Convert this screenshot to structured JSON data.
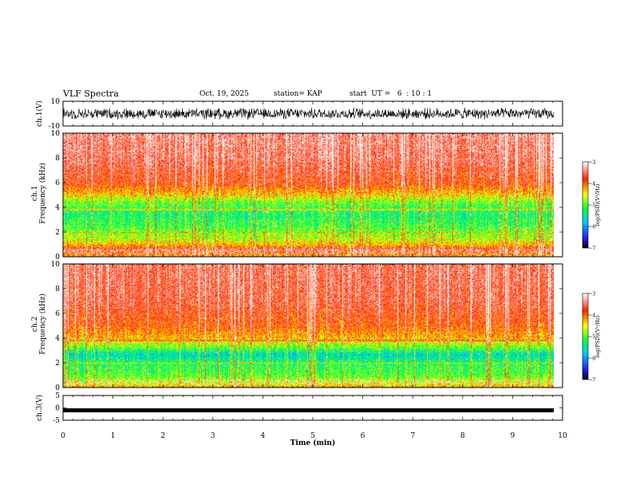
{
  "header": {
    "title": "VLF Spectra",
    "date": "Oct. 19, 2025",
    "station": "station= KAP",
    "start": "start  UT =   6  : 10 : 1"
  },
  "chart_data": {
    "type": "heatmap",
    "title": "VLF Spectra",
    "xlabel": "Time  (min)",
    "xlim": [
      0,
      10
    ],
    "xticks": [
      "0",
      "1",
      "2",
      "3",
      "4",
      "5",
      "6",
      "7",
      "8",
      "9",
      "10"
    ],
    "data_end_min": 9.83,
    "panels": [
      {
        "id": "ch1-waveform",
        "type": "line",
        "ylabel": "ch.1(V)",
        "ylim": [
          -10,
          10
        ],
        "yticks": [
          "10",
          "-10"
        ],
        "typical_range": [
          -5,
          5
        ]
      },
      {
        "id": "ch1-spectrogram",
        "type": "heatmap",
        "ylabel_line1": "ch.1",
        "ylabel_line2": "Frequency  (kHz)",
        "ylim": [
          0,
          10
        ],
        "yticks": [
          "0",
          "2",
          "4",
          "6",
          "8",
          "10"
        ],
        "band_profile": [
          {
            "f": 0.0,
            "v": -4.4
          },
          {
            "f": 0.5,
            "v": -3.6
          },
          {
            "f": 1.0,
            "v": -4.3
          },
          {
            "f": 1.5,
            "v": -4.7
          },
          {
            "f": 2.5,
            "v": -5.1
          },
          {
            "f": 3.5,
            "v": -5.3
          },
          {
            "f": 4.5,
            "v": -4.9
          },
          {
            "f": 5.0,
            "v": -4.4
          },
          {
            "f": 6.0,
            "v": -3.8
          },
          {
            "f": 8.0,
            "v": -3.5
          },
          {
            "f": 10.0,
            "v": -3.4
          }
        ],
        "colorbar": {
          "label": "log(PSD)(V²/Hz)",
          "range": [
            -7,
            -3
          ],
          "ticks": [
            "-3",
            "-4",
            "-5",
            "-6",
            "-7"
          ]
        }
      },
      {
        "id": "ch2-spectrogram",
        "type": "heatmap",
        "ylabel_line1": "ch.2",
        "ylabel_line2": "Frequency  (kHz)",
        "ylim": [
          0,
          10
        ],
        "yticks": [
          "0",
          "2",
          "4",
          "6",
          "8",
          "10"
        ],
        "band_profile": [
          {
            "f": 0.0,
            "v": -4.3
          },
          {
            "f": 0.5,
            "v": -4.6
          },
          {
            "f": 1.0,
            "v": -5.0
          },
          {
            "f": 2.0,
            "v": -5.2
          },
          {
            "f": 2.7,
            "v": -5.6
          },
          {
            "f": 3.2,
            "v": -5.0
          },
          {
            "f": 4.0,
            "v": -4.3
          },
          {
            "f": 5.0,
            "v": -3.9
          },
          {
            "f": 7.0,
            "v": -3.6
          },
          {
            "f": 10.0,
            "v": -3.5
          }
        ],
        "colorbar": {
          "label": "log(PSD)(V²/Hz)",
          "range": [
            -7,
            -3
          ],
          "ticks": [
            "-3",
            "-4",
            "-5",
            "-6",
            "-7"
          ]
        }
      },
      {
        "id": "ch3-waveform",
        "type": "line",
        "ylabel": "ch.3(V)",
        "ylim": [
          -5,
          5
        ],
        "yticks": [
          "5",
          "0",
          "-5"
        ],
        "level": -1.0
      }
    ]
  },
  "colors": {
    "axis": "#000000",
    "colormap": [
      "#000000",
      "#2020ff",
      "#00c8ff",
      "#00ff40",
      "#ffff00",
      "#ff2000",
      "#ffffff"
    ]
  }
}
